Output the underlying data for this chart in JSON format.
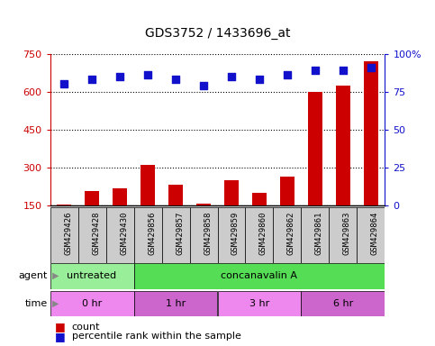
{
  "title": "GDS3752 / 1433696_at",
  "samples": [
    "GSM429426",
    "GSM429428",
    "GSM429430",
    "GSM429856",
    "GSM429857",
    "GSM429858",
    "GSM429859",
    "GSM429860",
    "GSM429862",
    "GSM429861",
    "GSM429863",
    "GSM429864"
  ],
  "counts": [
    155,
    210,
    220,
    310,
    235,
    160,
    250,
    200,
    265,
    600,
    625,
    720
  ],
  "percentiles": [
    80,
    83,
    85,
    86,
    83,
    79,
    85,
    83,
    86,
    89,
    89,
    91
  ],
  "ylim_left": [
    150,
    750
  ],
  "ylim_right": [
    0,
    100
  ],
  "yticks_left": [
    150,
    300,
    450,
    600,
    750
  ],
  "yticks_right": [
    0,
    25,
    50,
    75,
    100
  ],
  "agent_groups": [
    {
      "label": "untreated",
      "start": 0,
      "end": 3,
      "color": "#99ee99"
    },
    {
      "label": "concanavalin A",
      "start": 3,
      "end": 12,
      "color": "#55dd55"
    }
  ],
  "time_groups": [
    {
      "label": "0 hr",
      "start": 0,
      "end": 3,
      "color": "#ee88ee"
    },
    {
      "label": "1 hr",
      "start": 3,
      "end": 6,
      "color": "#cc66cc"
    },
    {
      "label": "3 hr",
      "start": 6,
      "end": 9,
      "color": "#ee88ee"
    },
    {
      "label": "6 hr",
      "start": 9,
      "end": 12,
      "color": "#cc66cc"
    }
  ],
  "bar_color": "#cc0000",
  "dot_color": "#1111cc",
  "bg_color": "#ffffff",
  "sample_cell_color": "#cccccc",
  "title_fontsize": 10,
  "tick_fontsize": 8,
  "label_fontsize": 8,
  "annotation_fontsize": 8,
  "left_tick_color": "#cc0000",
  "right_tick_color": "#1111cc"
}
